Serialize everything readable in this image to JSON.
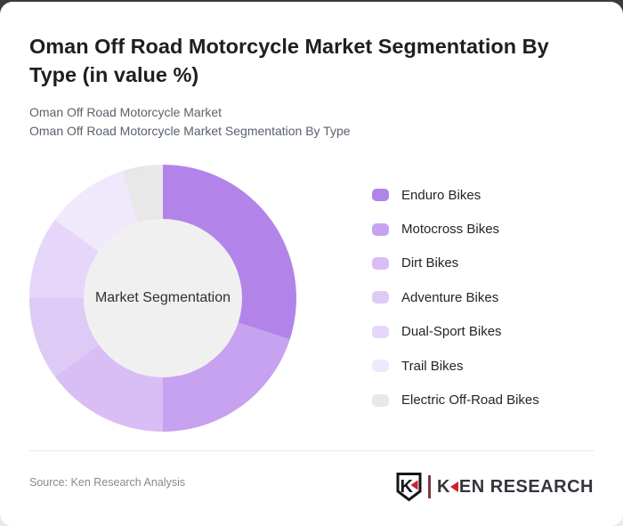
{
  "card": {
    "title": "Oman Off Road Motorcycle Market Segmentation By Type (in value %)",
    "subtitle_line1": "Oman Off Road Motorcycle Market",
    "subtitle_line2": "Oman Off Road Motorcycle Market Segmentation By Type"
  },
  "chart_data": {
    "type": "pie",
    "variant": "donut",
    "title": "Oman Off Road Motorcycle Market Segmentation By Type (in value %)",
    "center_label": "Market Segmentation",
    "categories": [
      "Enduro Bikes",
      "Motocross Bikes",
      "Dirt Bikes",
      "Adventure Bikes",
      "Dual-Sport Bikes",
      "Trail Bikes",
      "Electric Off-Road Bikes"
    ],
    "values": [
      30,
      20,
      15,
      10,
      10,
      10,
      5
    ],
    "unit": "value %",
    "colors": [
      "#b284ea",
      "#c7a2f0",
      "#d8bef5",
      "#ddcbf6",
      "#e6d7fa",
      "#f0e9fc",
      "#e8e8e9"
    ],
    "hole_color": "#f0f0f0",
    "start_angle_deg": 0,
    "direction": "clockwise",
    "legend_position": "right",
    "data_labels_shown": false
  },
  "footer": {
    "source": "Source: Ken Research Analysis",
    "logo": {
      "shield_letter": "K",
      "wordmark_prefix": "K",
      "wordmark_suffix": "EN RESEARCH",
      "accent_color": "#cf1f2e"
    }
  }
}
